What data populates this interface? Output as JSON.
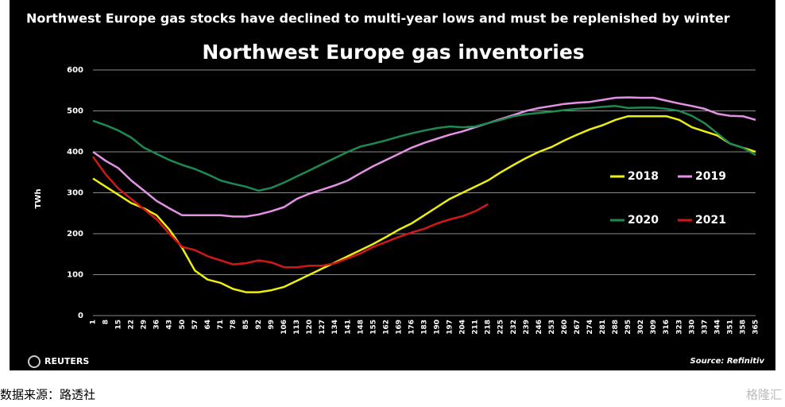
{
  "chart_data": {
    "type": "line",
    "headline": "Northwest Europe gas stocks have declined to multi-year lows and must be replenished by winter",
    "title": "Northwest Europe gas inventories",
    "y_label": "TWh",
    "source": "Source: Refinitiv",
    "logo": "REUTERS",
    "x": [
      1,
      8,
      15,
      22,
      29,
      36,
      43,
      50,
      57,
      64,
      71,
      78,
      85,
      92,
      99,
      106,
      113,
      120,
      127,
      134,
      141,
      148,
      155,
      162,
      169,
      176,
      183,
      190,
      197,
      204,
      211,
      218,
      225,
      232,
      239,
      246,
      253,
      260,
      267,
      274,
      281,
      288,
      295,
      302,
      309,
      316,
      323,
      330,
      337,
      344,
      351,
      358,
      365
    ],
    "xticks": [
      1,
      8,
      15,
      22,
      29,
      36,
      43,
      50,
      57,
      64,
      71,
      78,
      85,
      92,
      99,
      106,
      113,
      120,
      127,
      134,
      141,
      148,
      155,
      162,
      169,
      176,
      183,
      190,
      197,
      204,
      211,
      218,
      225,
      232,
      239,
      246,
      253,
      260,
      267,
      274,
      281,
      288,
      295,
      302,
      309,
      316,
      323,
      330,
      337,
      344,
      351,
      358,
      365
    ],
    "xlim": [
      1,
      365
    ],
    "ylim": [
      0,
      600
    ],
    "yticks": [
      0,
      100,
      200,
      300,
      400,
      500,
      600
    ],
    "grid": true,
    "series": [
      {
        "name": "2018",
        "color": "#eeee10",
        "values": [
          335,
          315,
          295,
          275,
          262,
          245,
          210,
          165,
          110,
          88,
          80,
          65,
          57,
          57,
          62,
          70,
          85,
          100,
          115,
          130,
          145,
          160,
          175,
          192,
          210,
          225,
          245,
          265,
          285,
          300,
          315,
          330,
          350,
          368,
          385,
          400,
          412,
          428,
          442,
          455,
          465,
          478,
          487,
          487,
          487,
          487,
          478,
          460,
          450,
          440,
          420,
          410,
          400
        ]
      },
      {
        "name": "2019",
        "color": "#e592e6",
        "values": [
          400,
          378,
          360,
          330,
          305,
          280,
          262,
          245,
          245,
          245,
          245,
          242,
          242,
          247,
          255,
          265,
          285,
          298,
          308,
          318,
          330,
          348,
          365,
          380,
          395,
          410,
          422,
          432,
          442,
          450,
          460,
          470,
          480,
          490,
          500,
          507,
          512,
          517,
          520,
          522,
          527,
          532,
          533,
          532,
          532,
          525,
          518,
          512,
          505,
          493,
          488,
          487,
          478
        ]
      },
      {
        "name": "2020",
        "color": "#1e8a52",
        "values": [
          476,
          465,
          452,
          435,
          410,
          395,
          380,
          368,
          358,
          345,
          330,
          322,
          315,
          305,
          312,
          325,
          340,
          355,
          370,
          385,
          400,
          413,
          420,
          428,
          437,
          445,
          452,
          458,
          462,
          460,
          462,
          470,
          478,
          487,
          492,
          495,
          498,
          502,
          505,
          507,
          510,
          512,
          507,
          508,
          508,
          505,
          500,
          488,
          470,
          445,
          420,
          410,
          392
        ]
      },
      {
        "name": "2021",
        "color": "#d01818",
        "values": [
          388,
          345,
          310,
          285,
          260,
          235,
          200,
          168,
          160,
          145,
          135,
          125,
          128,
          135,
          130,
          118,
          118,
          122,
          122,
          128,
          140,
          152,
          168,
          180,
          192,
          203,
          212,
          225,
          235,
          243,
          255,
          272,
          null,
          null,
          null,
          null,
          null,
          null,
          null,
          null,
          null,
          null,
          null,
          null,
          null,
          null,
          null,
          null,
          null,
          null,
          null,
          null,
          null
        ]
      }
    ]
  },
  "page": {
    "caption": "数据来源：路透社",
    "watermark": "格隆汇"
  }
}
